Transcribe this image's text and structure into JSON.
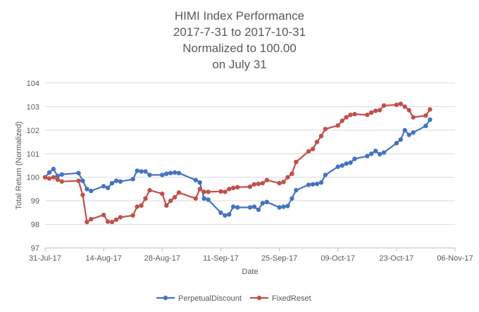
{
  "chart_data": {
    "type": "line",
    "title": [
      "HIMI Index Performance",
      "2017-7-31 to 2017-10-31",
      "Normalized to 100.00",
      "on July 31"
    ],
    "xlabel": "Date",
    "ylabel": "Total Return (Normalized)",
    "ylim": [
      97,
      104
    ],
    "yticks": [
      97,
      98,
      99,
      100,
      101,
      102,
      103,
      104
    ],
    "xlim": [
      "2017-07-31",
      "2017-11-06"
    ],
    "xtick_dates": [
      "2017-07-31",
      "2017-08-14",
      "2017-08-28",
      "2017-09-11",
      "2017-09-25",
      "2017-10-09",
      "2017-10-23",
      "2017-11-06"
    ],
    "xtick_labels": [
      "31-Jul-17",
      "14-Aug-17",
      "28-Aug-17",
      "11-Sep-17",
      "25-Sep-17",
      "09-Oct-17",
      "23-Oct-17",
      "06-Nov-17"
    ],
    "grid": "horizontal",
    "legend_position": "bottom",
    "series": [
      {
        "name": "PerpetualDiscount",
        "color": "#4472c4",
        "points": [
          [
            "2017-07-31",
            100.0
          ],
          [
            "2017-08-01",
            100.2
          ],
          [
            "2017-08-02",
            100.35
          ],
          [
            "2017-08-03",
            100.05
          ],
          [
            "2017-08-04",
            100.12
          ],
          [
            "2017-08-08",
            100.18
          ],
          [
            "2017-08-09",
            99.85
          ],
          [
            "2017-08-10",
            99.5
          ],
          [
            "2017-08-11",
            99.42
          ],
          [
            "2017-08-14",
            99.62
          ],
          [
            "2017-08-15",
            99.55
          ],
          [
            "2017-08-16",
            99.75
          ],
          [
            "2017-08-17",
            99.85
          ],
          [
            "2017-08-18",
            99.82
          ],
          [
            "2017-08-21",
            99.92
          ],
          [
            "2017-08-22",
            100.28
          ],
          [
            "2017-08-23",
            100.25
          ],
          [
            "2017-08-24",
            100.25
          ],
          [
            "2017-08-25",
            100.1
          ],
          [
            "2017-08-28",
            100.1
          ],
          [
            "2017-08-29",
            100.15
          ],
          [
            "2017-08-30",
            100.18
          ],
          [
            "2017-08-31",
            100.2
          ],
          [
            "2017-09-01",
            100.18
          ],
          [
            "2017-09-05",
            99.88
          ],
          [
            "2017-09-06",
            99.78
          ],
          [
            "2017-09-07",
            99.1
          ],
          [
            "2017-09-08",
            99.05
          ],
          [
            "2017-09-11",
            98.5
          ],
          [
            "2017-09-12",
            98.38
          ],
          [
            "2017-09-13",
            98.42
          ],
          [
            "2017-09-14",
            98.75
          ],
          [
            "2017-09-15",
            98.72
          ],
          [
            "2017-09-18",
            98.72
          ],
          [
            "2017-09-19",
            98.75
          ],
          [
            "2017-09-20",
            98.62
          ],
          [
            "2017-09-21",
            98.9
          ],
          [
            "2017-09-22",
            98.95
          ],
          [
            "2017-09-25",
            98.72
          ],
          [
            "2017-09-26",
            98.75
          ],
          [
            "2017-09-27",
            98.78
          ],
          [
            "2017-09-28",
            99.1
          ],
          [
            "2017-09-29",
            99.45
          ],
          [
            "2017-10-02",
            99.68
          ],
          [
            "2017-10-03",
            99.7
          ],
          [
            "2017-10-04",
            99.72
          ],
          [
            "2017-10-05",
            99.78
          ],
          [
            "2017-10-06",
            100.1
          ],
          [
            "2017-10-09",
            100.45
          ],
          [
            "2017-10-10",
            100.5
          ],
          [
            "2017-10-11",
            100.58
          ],
          [
            "2017-10-12",
            100.62
          ],
          [
            "2017-10-13",
            100.78
          ],
          [
            "2017-10-16",
            100.9
          ],
          [
            "2017-10-17",
            101.0
          ],
          [
            "2017-10-18",
            101.12
          ],
          [
            "2017-10-19",
            100.98
          ],
          [
            "2017-10-20",
            101.05
          ],
          [
            "2017-10-23",
            101.45
          ],
          [
            "2017-10-24",
            101.6
          ],
          [
            "2017-10-25",
            102.0
          ],
          [
            "2017-10-26",
            101.8
          ],
          [
            "2017-10-27",
            101.9
          ],
          [
            "2017-10-30",
            102.18
          ],
          [
            "2017-10-31",
            102.45
          ]
        ]
      },
      {
        "name": "FixedReset",
        "color": "#c0504d",
        "points": [
          [
            "2017-07-31",
            100.0
          ],
          [
            "2017-08-01",
            99.95
          ],
          [
            "2017-08-02",
            100.0
          ],
          [
            "2017-08-03",
            99.9
          ],
          [
            "2017-08-04",
            99.82
          ],
          [
            "2017-08-08",
            99.85
          ],
          [
            "2017-08-09",
            99.25
          ],
          [
            "2017-08-10",
            98.1
          ],
          [
            "2017-08-11",
            98.22
          ],
          [
            "2017-08-14",
            98.4
          ],
          [
            "2017-08-15",
            98.12
          ],
          [
            "2017-08-16",
            98.1
          ],
          [
            "2017-08-17",
            98.2
          ],
          [
            "2017-08-18",
            98.3
          ],
          [
            "2017-08-21",
            98.38
          ],
          [
            "2017-08-22",
            98.75
          ],
          [
            "2017-08-23",
            98.8
          ],
          [
            "2017-08-24",
            99.1
          ],
          [
            "2017-08-25",
            99.45
          ],
          [
            "2017-08-28",
            99.3
          ],
          [
            "2017-08-29",
            98.8
          ],
          [
            "2017-08-30",
            99.0
          ],
          [
            "2017-08-31",
            99.15
          ],
          [
            "2017-09-01",
            99.35
          ],
          [
            "2017-09-05",
            99.1
          ],
          [
            "2017-09-06",
            99.5
          ],
          [
            "2017-09-07",
            99.38
          ],
          [
            "2017-09-08",
            99.38
          ],
          [
            "2017-09-11",
            99.4
          ],
          [
            "2017-09-12",
            99.38
          ],
          [
            "2017-09-13",
            99.5
          ],
          [
            "2017-09-14",
            99.55
          ],
          [
            "2017-09-15",
            99.58
          ],
          [
            "2017-09-18",
            99.6
          ],
          [
            "2017-09-19",
            99.7
          ],
          [
            "2017-09-20",
            99.72
          ],
          [
            "2017-09-21",
            99.75
          ],
          [
            "2017-09-22",
            99.88
          ],
          [
            "2017-09-25",
            99.75
          ],
          [
            "2017-09-26",
            99.8
          ],
          [
            "2017-09-27",
            100.0
          ],
          [
            "2017-09-28",
            100.15
          ],
          [
            "2017-09-29",
            100.65
          ],
          [
            "2017-10-02",
            101.1
          ],
          [
            "2017-10-03",
            101.2
          ],
          [
            "2017-10-04",
            101.5
          ],
          [
            "2017-10-05",
            101.75
          ],
          [
            "2017-10-06",
            102.05
          ],
          [
            "2017-10-09",
            102.2
          ],
          [
            "2017-10-10",
            102.4
          ],
          [
            "2017-10-11",
            102.55
          ],
          [
            "2017-10-12",
            102.65
          ],
          [
            "2017-10-13",
            102.68
          ],
          [
            "2017-10-16",
            102.65
          ],
          [
            "2017-10-17",
            102.75
          ],
          [
            "2017-10-18",
            102.82
          ],
          [
            "2017-10-19",
            102.85
          ],
          [
            "2017-10-20",
            103.05
          ],
          [
            "2017-10-23",
            103.08
          ],
          [
            "2017-10-24",
            103.12
          ],
          [
            "2017-10-25",
            103.0
          ],
          [
            "2017-10-26",
            102.85
          ],
          [
            "2017-10-27",
            102.55
          ],
          [
            "2017-10-30",
            102.62
          ],
          [
            "2017-10-31",
            102.88
          ]
        ]
      }
    ]
  }
}
